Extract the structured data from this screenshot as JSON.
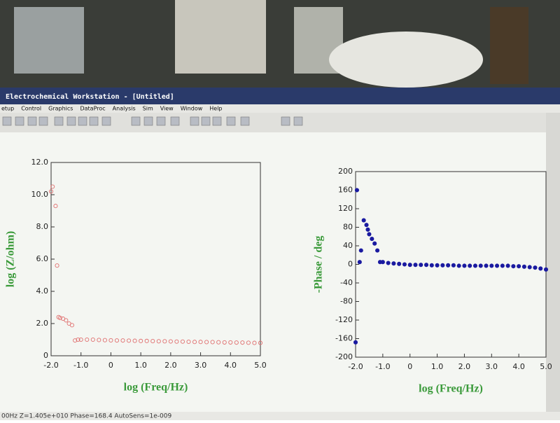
{
  "window": {
    "title": "Electrochemical Workstation - [Untitled]",
    "menu": [
      "etup",
      "Control",
      "Graphics",
      "DataProc",
      "Analysis",
      "Sim",
      "View",
      "Window",
      "Help"
    ],
    "status": "00Hz  Z=1.405e+010  Phase=168.4  AutoSens=1e-009"
  },
  "chart_data": [
    {
      "type": "scatter",
      "x_label": "log (Freq/Hz)",
      "y_label": "log (Z/ohm)",
      "color": "#e07070",
      "marker_fill": false,
      "xlim": [
        -2,
        5
      ],
      "ylim": [
        0,
        12
      ],
      "xticks": [
        {
          "value": -2,
          "label": "-2.0"
        },
        {
          "value": -1,
          "label": "-1.0"
        },
        0,
        {
          "value": 1,
          "label": "1.0"
        },
        {
          "value": 2,
          "label": "2.0"
        },
        {
          "value": 3,
          "label": "3.0"
        },
        {
          "value": 4,
          "label": "4.0"
        },
        {
          "value": 5,
          "label": "5.0"
        }
      ],
      "yticks": [
        0,
        {
          "value": 2,
          "label": "2.0"
        },
        {
          "value": 4,
          "label": "4.0"
        },
        {
          "value": 6,
          "label": "6.0"
        },
        {
          "value": 8,
          "label": "8.0"
        },
        {
          "value": 10,
          "label": "10.0"
        },
        {
          "value": 12,
          "label": "12.0"
        }
      ],
      "x": [
        -2.0,
        -1.95,
        -1.85,
        -1.8,
        -1.75,
        -1.7,
        -1.6,
        -1.5,
        -1.4,
        -1.3,
        -1.2,
        -1.1,
        -1.0,
        -0.8,
        -0.6,
        -0.4,
        -0.2,
        0.0,
        0.2,
        0.4,
        0.6,
        0.8,
        1.0,
        1.2,
        1.4,
        1.6,
        1.8,
        2.0,
        2.2,
        2.4,
        2.6,
        2.8,
        3.0,
        3.2,
        3.4,
        3.6,
        3.8,
        4.0,
        4.2,
        4.4,
        4.6,
        4.8,
        5.0
      ],
      "values": [
        10.2,
        10.5,
        9.3,
        5.6,
        2.4,
        2.35,
        2.3,
        2.2,
        2.0,
        1.9,
        0.95,
        1.0,
        1.0,
        1.0,
        1.0,
        0.98,
        0.97,
        0.96,
        0.95,
        0.95,
        0.94,
        0.93,
        0.92,
        0.92,
        0.91,
        0.9,
        0.9,
        0.89,
        0.88,
        0.88,
        0.87,
        0.86,
        0.86,
        0.85,
        0.85,
        0.84,
        0.83,
        0.83,
        0.82,
        0.82,
        0.81,
        0.8,
        0.8
      ]
    },
    {
      "type": "scatter",
      "x_label": "log (Freq/Hz)",
      "y_label": "-Phase / deg",
      "color": "#1a1aa0",
      "marker_fill": true,
      "xlim": [
        -2,
        5
      ],
      "ylim": [
        -200,
        200
      ],
      "xticks": [
        {
          "value": -2,
          "label": "-2.0"
        },
        {
          "value": -1,
          "label": "-1.0"
        },
        0,
        {
          "value": 1,
          "label": "1.0"
        },
        {
          "value": 2,
          "label": "2.0"
        },
        {
          "value": 3,
          "label": "3.0"
        },
        {
          "value": 4,
          "label": "4.0"
        },
        {
          "value": 5,
          "label": "5.0"
        }
      ],
      "yticks": [
        -200,
        -160,
        -120,
        -80,
        -40,
        0,
        40,
        80,
        120,
        160,
        200
      ],
      "x": [
        -2.0,
        -1.95,
        -1.85,
        -1.8,
        -1.7,
        -1.6,
        -1.55,
        -1.5,
        -1.4,
        -1.3,
        -1.2,
        -1.1,
        -1.0,
        -0.8,
        -0.6,
        -0.4,
        -0.2,
        0.0,
        0.2,
        0.4,
        0.6,
        0.8,
        1.0,
        1.2,
        1.4,
        1.6,
        1.8,
        2.0,
        2.2,
        2.4,
        2.6,
        2.8,
        3.0,
        3.2,
        3.4,
        3.6,
        3.8,
        4.0,
        4.2,
        4.4,
        4.6,
        4.8,
        5.0
      ],
      "values": [
        -168,
        160,
        5,
        30,
        95,
        85,
        75,
        65,
        55,
        45,
        30,
        5,
        5,
        3,
        2,
        1,
        0,
        -1,
        -1,
        -1,
        -1,
        -2,
        -2,
        -2,
        -2,
        -2,
        -3,
        -3,
        -3,
        -3,
        -3,
        -3,
        -3,
        -3,
        -3,
        -3,
        -4,
        -4,
        -5,
        -6,
        -7,
        -9,
        -11
      ]
    }
  ]
}
